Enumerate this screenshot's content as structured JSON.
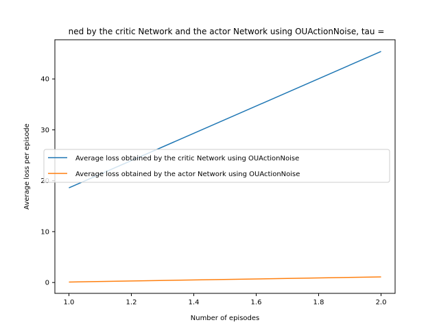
{
  "chart_data": {
    "type": "line",
    "title": "ned by the critic Network and the actor Network using OUActionNoise, tau =",
    "xlabel": "Number of episodes",
    "ylabel": "Average loss per episode",
    "xlim": [
      0.955,
      2.045
    ],
    "ylim": [
      -2.13,
      47.7
    ],
    "x_ticks": [
      1.0,
      1.2,
      1.4,
      1.6,
      1.8,
      2.0
    ],
    "x_tick_labels": [
      "1.0",
      "1.2",
      "1.4",
      "1.6",
      "1.8",
      "2.0"
    ],
    "y_ticks": [
      0,
      10,
      20,
      30,
      40
    ],
    "y_tick_labels": [
      "0",
      "10",
      "20",
      "30",
      "40"
    ],
    "grid": false,
    "legend_position": "center-left",
    "series": [
      {
        "name": "Average loss obtained by the critic Network using OUActionNoise",
        "color": "#1f77b4",
        "x": [
          1.0,
          2.0
        ],
        "y": [
          18.6,
          45.4
        ]
      },
      {
        "name": "Average loss obtained by the actor Network using OUActionNoise",
        "color": "#ff7f0e",
        "x": [
          1.0,
          2.0
        ],
        "y": [
          0.1,
          1.1
        ]
      }
    ]
  }
}
